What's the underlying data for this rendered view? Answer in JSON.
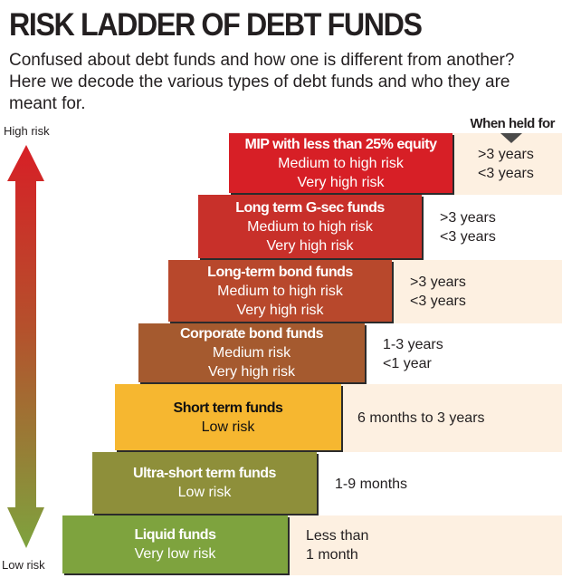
{
  "title": "RISK LADDER OF DEBT FUNDS",
  "subtitle": "Confused about debt funds and how one is different from another? Here we decode the various types of debt funds and who they are meant for.",
  "axis": {
    "high": "High risk",
    "low": "Low risk",
    "arrow_colors": [
      "#d71f26",
      "#7ea33e"
    ]
  },
  "held_header": "When held for",
  "colors": {
    "beige": "#fdf0e1"
  },
  "steps": [
    {
      "name": "MIP with less than 25% equity",
      "risk": [
        "Medium to high risk",
        "Very high risk"
      ],
      "held": [
        ">3 years",
        "<3 years"
      ],
      "color": "#d71f26",
      "text": "#fff"
    },
    {
      "name": "Long term G-sec funds",
      "risk": [
        "Medium to high risk",
        "Very high risk"
      ],
      "held": [
        ">3 years",
        "<3 years"
      ],
      "color": "#c8302a",
      "text": "#fff"
    },
    {
      "name": "Long-term bond funds",
      "risk": [
        "Medium to high risk",
        "Very high risk"
      ],
      "held": [
        ">3 years",
        "<3 years"
      ],
      "color": "#b8482c",
      "text": "#fff"
    },
    {
      "name": "Corporate bond funds",
      "risk": [
        "Medium risk",
        "Very high risk"
      ],
      "held": [
        "1-3 years",
        "<1 year"
      ],
      "color": "#a55a2f",
      "text": "#fff"
    },
    {
      "name": "Short term funds",
      "risk": [
        "Low risk"
      ],
      "held": [
        "6 months to 3 years"
      ],
      "color": "#f6b730",
      "text": "#111"
    },
    {
      "name": "Ultra-short term funds",
      "risk": [
        "Low risk"
      ],
      "held": [
        "1-9 months"
      ],
      "color": "#8e8f3a",
      "text": "#fff"
    },
    {
      "name": "Liquid funds",
      "risk": [
        "Very low risk"
      ],
      "held": [
        "Less than",
        "1 month"
      ],
      "color": "#7ea33e",
      "text": "#fff"
    }
  ]
}
